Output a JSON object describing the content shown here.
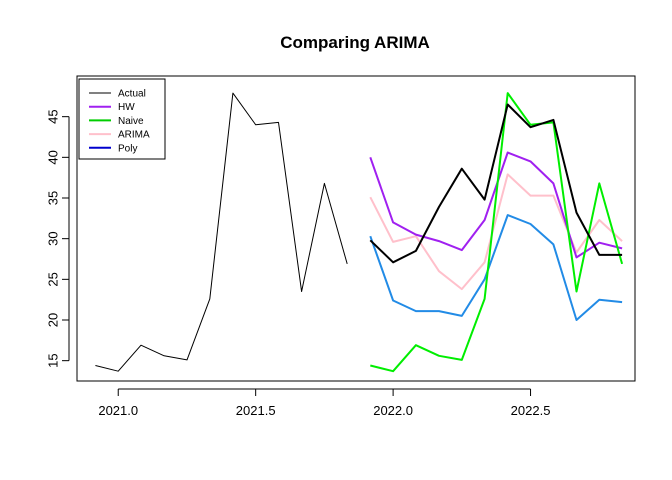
{
  "chart_data": {
    "type": "line",
    "title": "Comparing ARIMA",
    "xlabel": "",
    "ylabel": "",
    "xlim": [
      2020.85,
      2022.88
    ],
    "ylim": [
      12.5,
      50
    ],
    "x_ticks": [
      2021.0,
      2021.5,
      2022.0,
      2022.5
    ],
    "x_tick_labels": [
      "2021.0",
      "2021.5",
      "2022.0",
      "2022.5"
    ],
    "y_ticks": [
      15,
      20,
      25,
      30,
      35,
      40,
      45
    ],
    "y_tick_labels": [
      "15",
      "20",
      "25",
      "30",
      "35",
      "40",
      "45"
    ],
    "grid": false,
    "legend_position": "top-left",
    "legend": [
      {
        "label": "Actual",
        "color": "#000000"
      },
      {
        "label": "HW",
        "color": "#a020f0"
      },
      {
        "label": "Naive",
        "color": "#00cd00"
      },
      {
        "label": "ARIMA",
        "color": "#ffc0cb"
      },
      {
        "label": "Poly",
        "color": "#0000cd"
      }
    ],
    "series": [
      {
        "color": "#000000",
        "width": 1,
        "x": [
          2020.917,
          2021.0,
          2021.083,
          2021.167,
          2021.25,
          2021.333,
          2021.417,
          2021.5,
          2021.583,
          2021.667,
          2021.75,
          2021.833
        ],
        "values": [
          14.4,
          13.7,
          16.9,
          15.6,
          15.1,
          22.6,
          47.9,
          44.0,
          44.3,
          23.5,
          36.8,
          26.9
        ]
      },
      {
        "color": "#228be6",
        "width": 2,
        "x": [
          2021.917,
          2022.0,
          2022.083,
          2022.167,
          2022.25,
          2022.333,
          2022.417,
          2022.5,
          2022.583,
          2022.667,
          2022.75,
          2022.833
        ],
        "values": [
          30.3,
          22.4,
          21.1,
          21.1,
          20.5,
          25.0,
          32.9,
          31.8,
          29.3,
          20.0,
          22.5,
          22.2
        ]
      },
      {
        "color": "#ffc0cb",
        "width": 2,
        "x": [
          2021.917,
          2022.0,
          2022.083,
          2022.167,
          2022.25,
          2022.333,
          2022.417,
          2022.5,
          2022.583,
          2022.667,
          2022.75,
          2022.833
        ],
        "values": [
          35.1,
          29.6,
          30.3,
          26.0,
          23.8,
          27.1,
          37.9,
          35.3,
          35.3,
          28.3,
          32.3,
          29.7
        ]
      },
      {
        "color": "#a020f0",
        "width": 2,
        "x": [
          2021.917,
          2022.0,
          2022.083,
          2022.167,
          2022.25,
          2022.333,
          2022.417,
          2022.5,
          2022.583,
          2022.667,
          2022.75,
          2022.833
        ],
        "values": [
          40.0,
          32.0,
          30.5,
          29.7,
          28.6,
          32.3,
          40.6,
          39.5,
          36.8,
          27.7,
          29.5,
          28.8
        ]
      },
      {
        "color": "#00ee00",
        "width": 2,
        "x": [
          2021.917,
          2022.0,
          2022.083,
          2022.167,
          2022.25,
          2022.333,
          2022.417,
          2022.5,
          2022.583,
          2022.667,
          2022.75,
          2022.833
        ],
        "values": [
          14.4,
          13.7,
          16.9,
          15.6,
          15.1,
          22.6,
          47.9,
          44.0,
          44.3,
          23.5,
          36.8,
          26.9
        ]
      },
      {
        "color": "#000000",
        "width": 2,
        "x": [
          2021.917,
          2022.0,
          2022.083,
          2022.167,
          2022.25,
          2022.333,
          2022.417,
          2022.5,
          2022.583,
          2022.667,
          2022.75,
          2022.833
        ],
        "values": [
          29.8,
          27.1,
          28.5,
          33.9,
          38.6,
          34.8,
          46.5,
          43.7,
          44.6,
          33.2,
          28.0,
          28.0
        ]
      }
    ]
  }
}
